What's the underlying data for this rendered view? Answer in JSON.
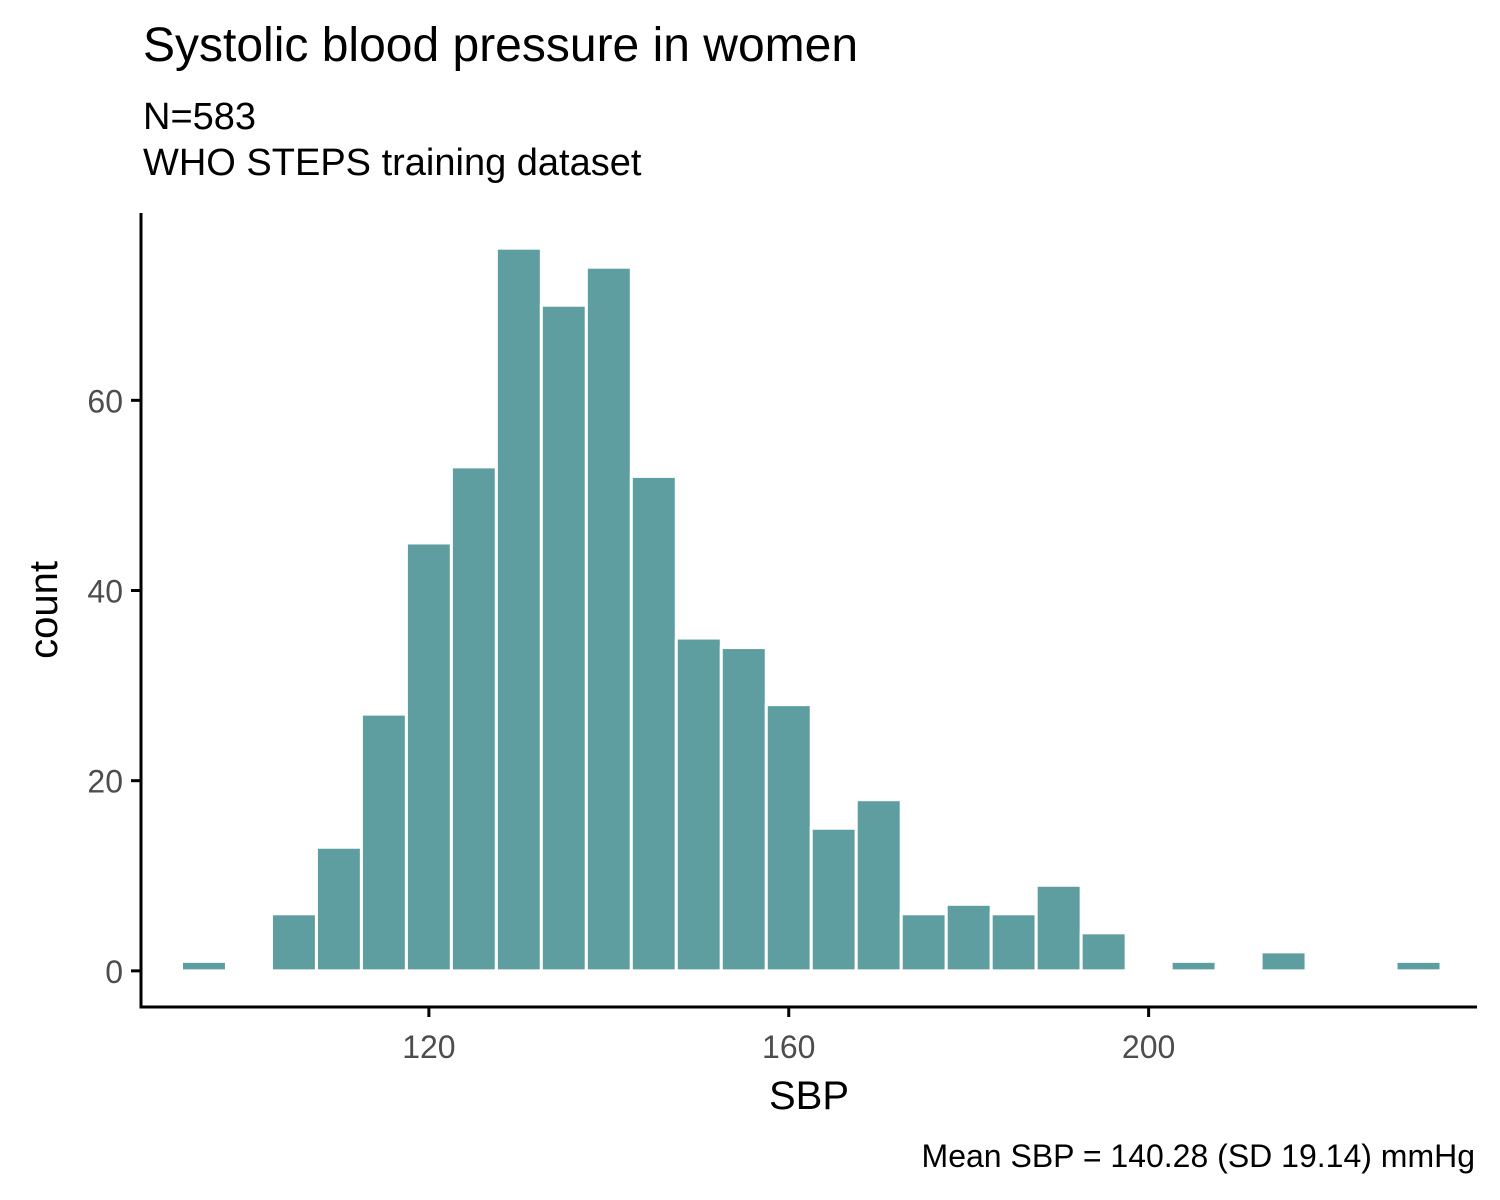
{
  "chart_data": {
    "type": "bar",
    "title": "Systolic blood pressure in women",
    "subtitle_lines": [
      "N=583",
      "WHO STEPS training dataset"
    ],
    "caption": "Mean SBP = 140.28 (SD 19.14) mmHg",
    "xlabel": "SBP",
    "ylabel": "count",
    "xlim": [
      88.0,
      236.5
    ],
    "ylim": [
      -3.8,
      79.7
    ],
    "x_ticks": [
      120,
      160,
      200
    ],
    "y_ticks": [
      0,
      20,
      40,
      60
    ],
    "bin_width": 5,
    "fill_color": "#5f9ea0",
    "series": [
      {
        "bin_centers": [
          95,
          100,
          105,
          110,
          115,
          120,
          125,
          130,
          135,
          140,
          145,
          150,
          155,
          160,
          165,
          170,
          175,
          180,
          185,
          190,
          195,
          200,
          205,
          210,
          215,
          220,
          225,
          230
        ],
        "values": [
          1,
          0,
          6,
          13,
          27,
          45,
          53,
          76,
          70,
          74,
          52,
          35,
          34,
          28,
          15,
          18,
          6,
          7,
          6,
          9,
          4,
          0,
          1,
          0,
          2,
          0,
          0,
          1
        ]
      }
    ]
  }
}
